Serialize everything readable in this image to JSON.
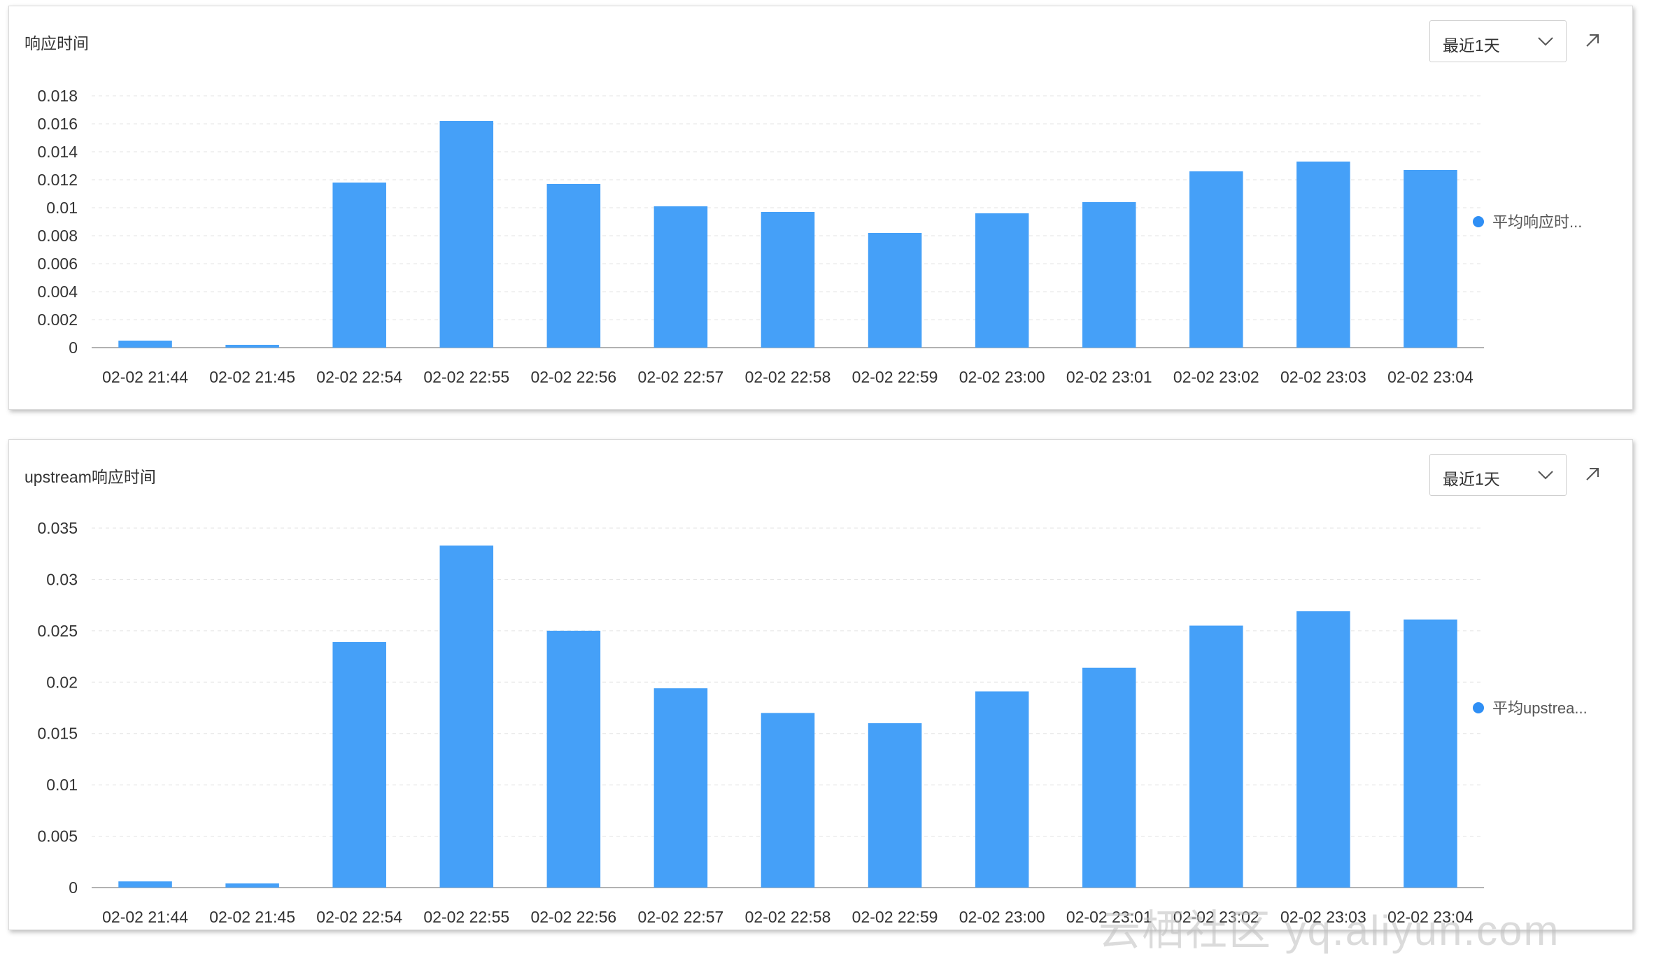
{
  "panels": [
    {
      "title": "响应时间",
      "range_label": "最近1天",
      "legend": "平均响应时...",
      "y_ticks": [
        "0",
        "0.002",
        "0.004",
        "0.006",
        "0.008",
        "0.01",
        "0.012",
        "0.014",
        "0.016",
        "0.018"
      ]
    },
    {
      "title": "upstream响应时间",
      "range_label": "最近1天",
      "legend": "平均upstrea...",
      "y_ticks": [
        "0",
        "0.005",
        "0.01",
        "0.015",
        "0.02",
        "0.025",
        "0.03",
        "0.035"
      ]
    }
  ],
  "icons": {
    "dropdown": "chevron-down-icon",
    "expand": "arrow-up-right-icon"
  },
  "colors": {
    "bar": "#45a0f8",
    "legend_dot": "#2f8ff5"
  },
  "watermark": "云栖社区 yq.aliyun.com",
  "chart_data": [
    {
      "type": "bar",
      "title": "响应时间",
      "categories": [
        "02-02 21:44",
        "02-02 21:45",
        "02-02 22:54",
        "02-02 22:55",
        "02-02 22:56",
        "02-02 22:57",
        "02-02 22:58",
        "02-02 22:59",
        "02-02 23:00",
        "02-02 23:01",
        "02-02 23:02",
        "02-02 23:03",
        "02-02 23:04"
      ],
      "series": [
        {
          "name": "平均响应时...",
          "values": [
            0.0005,
            0.0002,
            0.0118,
            0.0162,
            0.0117,
            0.0101,
            0.0097,
            0.0082,
            0.0096,
            0.0104,
            0.0126,
            0.0133,
            0.0127
          ]
        }
      ],
      "ylim": [
        0,
        0.018
      ],
      "grid": true,
      "legend_position": "right"
    },
    {
      "type": "bar",
      "title": "upstream响应时间",
      "categories": [
        "02-02 21:44",
        "02-02 21:45",
        "02-02 22:54",
        "02-02 22:55",
        "02-02 22:56",
        "02-02 22:57",
        "02-02 22:58",
        "02-02 22:59",
        "02-02 23:00",
        "02-02 23:01",
        "02-02 23:02",
        "02-02 23:03",
        "02-02 23:04"
      ],
      "series": [
        {
          "name": "平均upstrea...",
          "values": [
            0.0006,
            0.0004,
            0.0239,
            0.0333,
            0.025,
            0.0194,
            0.017,
            0.016,
            0.0191,
            0.0214,
            0.0255,
            0.0269,
            0.0261
          ]
        }
      ],
      "ylim": [
        0,
        0.035
      ],
      "grid": true,
      "legend_position": "right"
    }
  ]
}
